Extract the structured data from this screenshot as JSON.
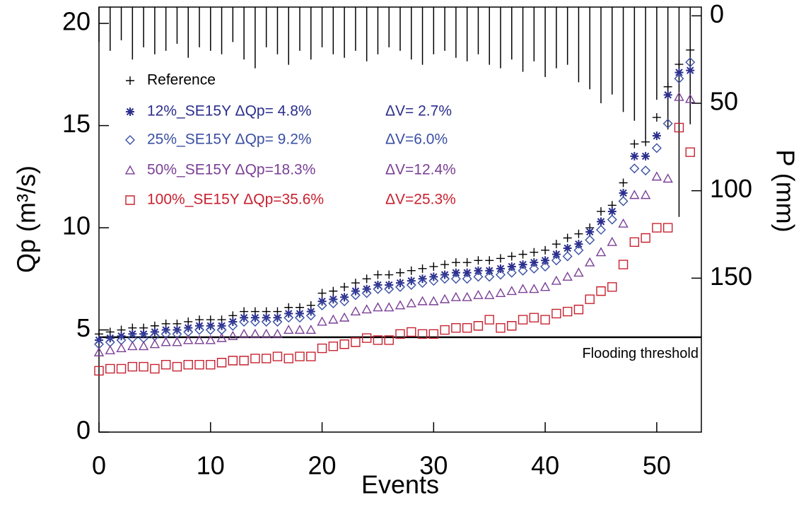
{
  "chart_data": {
    "type": "scatter",
    "xlabel": "Events",
    "ylabel": "Qp (m³/s)",
    "y2label": "P (mm)",
    "xlim": [
      0,
      54
    ],
    "ylim": [
      0,
      20.8
    ],
    "y2lim": [
      238,
      -5
    ],
    "xticks": [
      0,
      10,
      20,
      30,
      40,
      50
    ],
    "yticks": [
      0,
      5,
      10,
      15,
      20
    ],
    "y2ticks": [
      0,
      50,
      100,
      150
    ],
    "x": [
      0,
      1,
      2,
      3,
      4,
      5,
      6,
      7,
      8,
      9,
      10,
      11,
      12,
      13,
      14,
      15,
      16,
      17,
      18,
      19,
      20,
      21,
      22,
      23,
      24,
      25,
      26,
      27,
      28,
      29,
      30,
      31,
      32,
      33,
      34,
      35,
      36,
      37,
      38,
      39,
      40,
      41,
      42,
      43,
      44,
      45,
      46,
      47,
      48,
      49,
      50,
      51,
      52,
      53
    ],
    "series": [
      {
        "name": "Reference",
        "marker": "plus",
        "color": "#000000",
        "values": [
          4.8,
          4.9,
          5.0,
          5.1,
          5.1,
          5.2,
          5.3,
          5.3,
          5.4,
          5.5,
          5.5,
          5.5,
          5.7,
          5.9,
          5.9,
          5.9,
          5.9,
          6.1,
          6.1,
          6.2,
          6.8,
          6.9,
          7.1,
          7.3,
          7.5,
          7.7,
          7.7,
          7.8,
          7.9,
          8.0,
          8.1,
          8.2,
          8.3,
          8.3,
          8.4,
          8.4,
          8.5,
          8.6,
          8.7,
          8.8,
          8.9,
          9.2,
          9.5,
          9.7,
          10.0,
          10.8,
          11.1,
          12.2,
          14.1,
          14.2,
          15.4,
          16.9,
          18.0,
          18.7
        ]
      },
      {
        "name": "12%_SE15Y ΔQp= 4.8%",
        "dv": "ΔV= 2.7%",
        "marker": "asterisk",
        "color": "#2b2e8c",
        "values": [
          4.5,
          4.6,
          4.7,
          4.8,
          4.8,
          4.9,
          5.0,
          5.0,
          5.1,
          5.2,
          5.2,
          5.2,
          5.4,
          5.6,
          5.6,
          5.6,
          5.6,
          5.8,
          5.8,
          5.9,
          6.4,
          6.5,
          6.6,
          6.9,
          7.0,
          7.2,
          7.2,
          7.3,
          7.4,
          7.5,
          7.6,
          7.7,
          7.8,
          7.8,
          7.9,
          7.9,
          8.0,
          8.1,
          8.2,
          8.3,
          8.4,
          8.7,
          9.0,
          9.2,
          9.8,
          10.3,
          10.8,
          11.7,
          13.5,
          13.5,
          14.5,
          16.5,
          17.6,
          17.7
        ]
      },
      {
        "name": "25%_SE15Y ΔQp= 9.2%",
        "dv": "ΔV=6.0%",
        "marker": "diamond",
        "color": "#3a4fa3",
        "values": [
          4.3,
          4.4,
          4.5,
          4.6,
          4.6,
          4.7,
          4.8,
          4.8,
          4.9,
          5.0,
          5.0,
          5.0,
          5.2,
          5.4,
          5.4,
          5.4,
          5.4,
          5.6,
          5.6,
          5.7,
          6.2,
          6.3,
          6.4,
          6.7,
          6.8,
          7.0,
          7.0,
          7.1,
          7.2,
          7.3,
          7.4,
          7.5,
          7.5,
          7.5,
          7.6,
          7.6,
          7.7,
          7.8,
          7.9,
          8.0,
          8.1,
          8.4,
          8.6,
          8.9,
          9.4,
          9.9,
          10.4,
          11.3,
          12.9,
          12.8,
          13.9,
          15.1,
          17.3,
          18.1
        ]
      },
      {
        "name": "50%_SE15Y ΔQp=18.3%",
        "dv": "ΔV=12.4%",
        "marker": "triangle",
        "color": "#7a3f96",
        "values": [
          3.9,
          4.0,
          4.1,
          4.2,
          4.2,
          4.3,
          4.4,
          4.4,
          4.5,
          4.5,
          4.5,
          4.6,
          4.7,
          4.8,
          4.8,
          4.8,
          4.8,
          5.0,
          5.0,
          5.0,
          5.4,
          5.5,
          5.6,
          5.9,
          6.0,
          6.1,
          6.1,
          6.2,
          6.3,
          6.4,
          6.4,
          6.5,
          6.6,
          6.6,
          6.7,
          6.7,
          6.8,
          6.9,
          7.0,
          7.0,
          7.1,
          7.4,
          7.6,
          7.8,
          8.3,
          8.8,
          9.3,
          10.2,
          11.6,
          11.6,
          12.5,
          12.4,
          16.4,
          16.3
        ]
      },
      {
        "name": "100%_SE15Y ΔQp=35.6%",
        "dv": "ΔV=25.3%",
        "marker": "square",
        "color": "#c8202f",
        "values": [
          3.0,
          3.1,
          3.1,
          3.2,
          3.2,
          3.1,
          3.3,
          3.2,
          3.3,
          3.3,
          3.3,
          3.4,
          3.5,
          3.5,
          3.6,
          3.6,
          3.7,
          3.6,
          3.7,
          3.7,
          4.1,
          4.2,
          4.3,
          4.4,
          4.6,
          4.5,
          4.5,
          4.8,
          4.9,
          4.8,
          4.8,
          5.0,
          5.1,
          5.1,
          5.2,
          5.5,
          5.1,
          5.2,
          5.5,
          5.6,
          5.5,
          5.8,
          5.9,
          6.0,
          6.5,
          6.9,
          7.1,
          8.2,
          9.3,
          9.5,
          10.0,
          10.0,
          14.9,
          13.7
        ]
      }
    ],
    "precipitation": {
      "axis": "y2",
      "color": "#000000",
      "values": [
        15,
        20,
        14,
        25,
        18,
        22,
        20,
        16,
        24,
        18,
        20,
        22,
        15,
        25,
        30,
        18,
        22,
        28,
        20,
        25,
        18,
        22,
        24,
        20,
        26,
        22,
        18,
        20,
        25,
        28,
        22,
        20,
        24,
        26,
        22,
        28,
        30,
        25,
        32,
        26,
        35,
        30,
        28,
        38,
        42,
        50,
        45,
        55,
        60,
        70,
        48,
        65,
        115,
        62
      ]
    },
    "threshold": 4.64,
    "threshold_label": "Flooding threshold"
  }
}
